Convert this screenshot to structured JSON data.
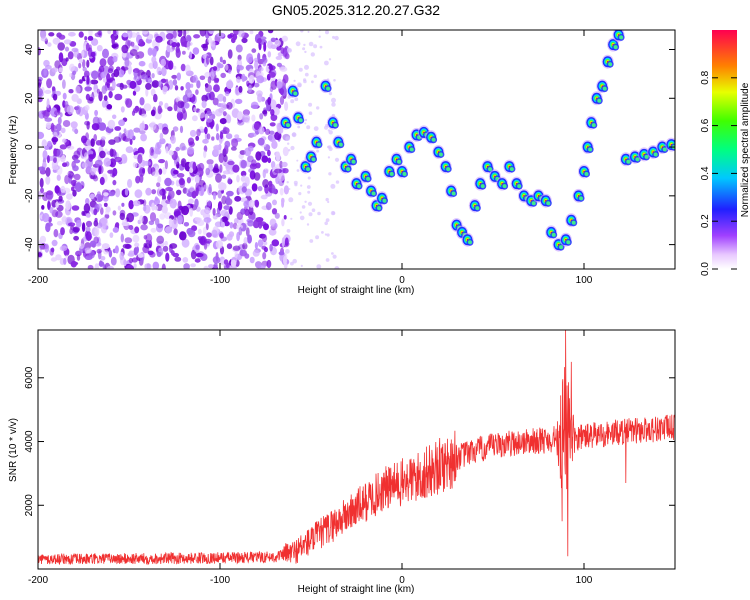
{
  "title": "GN05.2025.312.20.27.G32",
  "colors": {
    "scatter_purple": "#8a2be2",
    "snr_line": "#f03030",
    "axes": "#000000"
  },
  "chart_data": [
    {
      "type": "heatmap",
      "title": "GN05.2025.312.20.27.G32",
      "xlabel": "Height of straight line (km)",
      "ylabel": "Frequency (Hz)",
      "xlim": [
        -200,
        150
      ],
      "ylim": [
        -50,
        48
      ],
      "x_ticks": [
        -200,
        -100,
        0,
        100
      ],
      "x_tick_labels": [
        "-200",
        "-100",
        "0",
        "100"
      ],
      "y_ticks": [
        -40,
        -20,
        0,
        20,
        40
      ],
      "y_tick_labels": [
        "-40",
        "-20",
        "0",
        "20",
        "40"
      ],
      "noise_region_x": [
        -200,
        -63
      ],
      "colorbar": {
        "label": "Normalized spectral amplitude",
        "range": [
          0,
          1
        ],
        "ticks": [
          0,
          0.2,
          0.4,
          0.6,
          0.8
        ],
        "tick_labels": [
          "0.0",
          "0.2",
          "0.4",
          "0.6",
          "0.8"
        ]
      },
      "signal_track": [
        {
          "x": -64,
          "y": 10
        },
        {
          "x": -60,
          "y": 23
        },
        {
          "x": -57,
          "y": 12
        },
        {
          "x": -53,
          "y": -8
        },
        {
          "x": -50,
          "y": -4
        },
        {
          "x": -47,
          "y": 2
        },
        {
          "x": -42,
          "y": 25
        },
        {
          "x": -38,
          "y": 10
        },
        {
          "x": -35,
          "y": 2
        },
        {
          "x": -31,
          "y": -8
        },
        {
          "x": -28,
          "y": -5
        },
        {
          "x": -25,
          "y": -15
        },
        {
          "x": -20,
          "y": -12
        },
        {
          "x": -17,
          "y": -18
        },
        {
          "x": -14,
          "y": -24
        },
        {
          "x": -11,
          "y": -21
        },
        {
          "x": -7,
          "y": -10
        },
        {
          "x": -3,
          "y": -5
        },
        {
          "x": 0,
          "y": -10
        },
        {
          "x": 4,
          "y": 0
        },
        {
          "x": 8,
          "y": 5
        },
        {
          "x": 12,
          "y": 6
        },
        {
          "x": 16,
          "y": 4
        },
        {
          "x": 20,
          "y": -2
        },
        {
          "x": 24,
          "y": -8
        },
        {
          "x": 27,
          "y": -18
        },
        {
          "x": 30,
          "y": -32
        },
        {
          "x": 33,
          "y": -35
        },
        {
          "x": 36,
          "y": -38
        },
        {
          "x": 40,
          "y": -24
        },
        {
          "x": 43,
          "y": -15
        },
        {
          "x": 47,
          "y": -8
        },
        {
          "x": 51,
          "y": -12
        },
        {
          "x": 55,
          "y": -15
        },
        {
          "x": 59,
          "y": -8
        },
        {
          "x": 63,
          "y": -15
        },
        {
          "x": 67,
          "y": -20
        },
        {
          "x": 71,
          "y": -22
        },
        {
          "x": 75,
          "y": -20
        },
        {
          "x": 79,
          "y": -22
        },
        {
          "x": 82,
          "y": -35
        },
        {
          "x": 86,
          "y": -40
        },
        {
          "x": 90,
          "y": -38
        },
        {
          "x": 93,
          "y": -30
        },
        {
          "x": 97,
          "y": -20
        },
        {
          "x": 100,
          "y": -10
        },
        {
          "x": 102,
          "y": 0
        },
        {
          "x": 104,
          "y": 10
        },
        {
          "x": 107,
          "y": 20
        },
        {
          "x": 110,
          "y": 25
        },
        {
          "x": 113,
          "y": 35
        },
        {
          "x": 116,
          "y": 42
        },
        {
          "x": 119,
          "y": 46
        },
        {
          "x": 123,
          "y": -5
        },
        {
          "x": 128,
          "y": -4
        },
        {
          "x": 133,
          "y": -3
        },
        {
          "x": 138,
          "y": -2
        },
        {
          "x": 143,
          "y": 0
        },
        {
          "x": 148,
          "y": 1
        }
      ]
    },
    {
      "type": "line",
      "xlabel": "Height of straight line (km)",
      "ylabel": "SNR (10 * v/v)",
      "xlim": [
        -200,
        150
      ],
      "ylim": [
        0,
        7500
      ],
      "x_ticks": [
        -200,
        -100,
        0,
        100
      ],
      "x_tick_labels": [
        "-200",
        "-100",
        "0",
        "100"
      ],
      "y_ticks": [
        2000,
        4000,
        6000
      ],
      "y_tick_labels": [
        "2000",
        "4000",
        "6000"
      ],
      "series": [
        {
          "name": "SNR",
          "trend": [
            {
              "x": -200,
              "y": 300
            },
            {
              "x": -150,
              "y": 320
            },
            {
              "x": -100,
              "y": 350
            },
            {
              "x": -70,
              "y": 380
            },
            {
              "x": -60,
              "y": 500
            },
            {
              "x": -50,
              "y": 900
            },
            {
              "x": -40,
              "y": 1300
            },
            {
              "x": -30,
              "y": 1700
            },
            {
              "x": -20,
              "y": 2100
            },
            {
              "x": -10,
              "y": 2500
            },
            {
              "x": 0,
              "y": 2700
            },
            {
              "x": 10,
              "y": 2900
            },
            {
              "x": 20,
              "y": 3200
            },
            {
              "x": 30,
              "y": 3500
            },
            {
              "x": 40,
              "y": 3700
            },
            {
              "x": 50,
              "y": 3850
            },
            {
              "x": 60,
              "y": 3950
            },
            {
              "x": 70,
              "y": 4000
            },
            {
              "x": 80,
              "y": 4050
            },
            {
              "x": 85,
              "y": 4100
            },
            {
              "x": 90,
              "y": 4100
            },
            {
              "x": 100,
              "y": 4150
            },
            {
              "x": 120,
              "y": 4300
            },
            {
              "x": 150,
              "y": 4450
            }
          ],
          "spikes": [
            {
              "x": 90,
              "y": 7500
            },
            {
              "x": 91,
              "y": 400
            },
            {
              "x": 93,
              "y": 6500
            },
            {
              "x": 88,
              "y": 1500
            },
            {
              "x": 123,
              "y": 2700
            }
          ]
        }
      ]
    }
  ]
}
